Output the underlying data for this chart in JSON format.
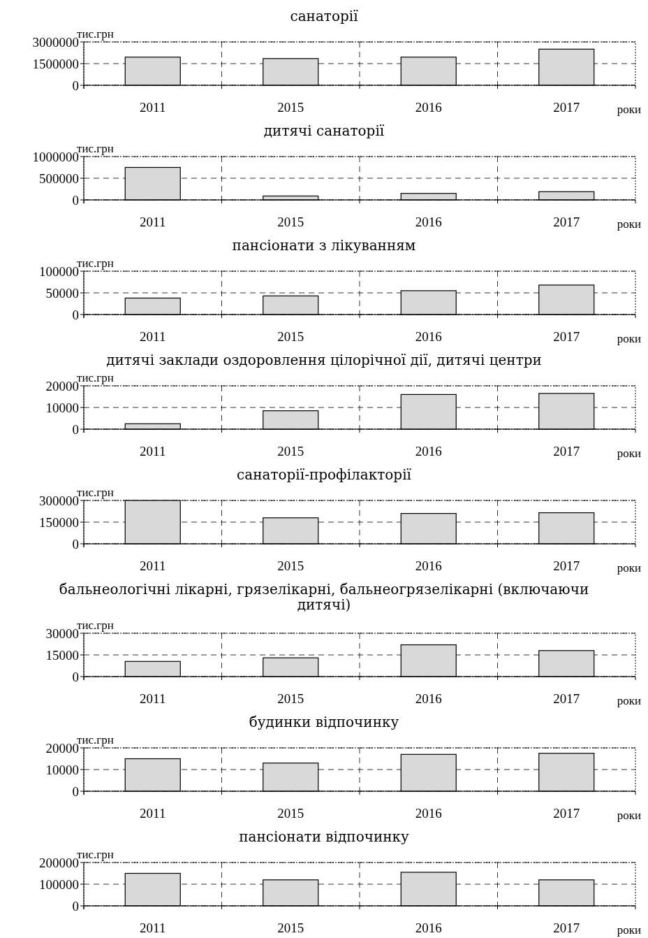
{
  "chart_data": [
    {
      "type": "bar",
      "title": "санаторії",
      "xlabel": "роки",
      "ylabel": "тис.грн",
      "categories": [
        "2011",
        "2015",
        "2016",
        "2017"
      ],
      "values": [
        1950000,
        1850000,
        1950000,
        2500000
      ],
      "color": "#d9d9d9",
      "ylim": [
        0,
        3000000
      ],
      "yticks": [
        0,
        1500000,
        3000000
      ],
      "grid": true
    },
    {
      "type": "bar",
      "title": "дитячі санаторії",
      "xlabel": "роки",
      "ylabel": "тис.грн",
      "categories": [
        "2011",
        "2015",
        "2016",
        "2017"
      ],
      "values": [
        750000,
        90000,
        150000,
        190000
      ],
      "color": "#d9d9d9",
      "ylim": [
        0,
        1000000
      ],
      "yticks": [
        0,
        500000,
        1000000
      ],
      "grid": true
    },
    {
      "type": "bar",
      "title": "пансіонати з лікуванням",
      "xlabel": "роки",
      "ylabel": "тис.грн",
      "categories": [
        "2011",
        "2015",
        "2016",
        "2017"
      ],
      "values": [
        38000,
        43000,
        55000,
        68000
      ],
      "color": "#d9d9d9",
      "ylim": [
        0,
        100000
      ],
      "yticks": [
        0,
        50000,
        100000
      ],
      "grid": true
    },
    {
      "type": "bar",
      "title": "дитячі заклади оздоровлення цілорічної дії, дитячі центри",
      "xlabel": "роки",
      "ylabel": "тис.грн",
      "categories": [
        "2011",
        "2015",
        "2016",
        "2017"
      ],
      "values": [
        2500,
        8500,
        16000,
        16500
      ],
      "color": "#d9d9d9",
      "ylim": [
        0,
        20000
      ],
      "yticks": [
        0,
        10000,
        20000
      ],
      "grid": true
    },
    {
      "type": "bar",
      "title": "санаторії-профілакторії",
      "xlabel": "роки",
      "ylabel": "тис.грн",
      "categories": [
        "2011",
        "2015",
        "2016",
        "2017"
      ],
      "values": [
        300000,
        180000,
        210000,
        215000
      ],
      "color": "#d9d9d9",
      "ylim": [
        0,
        300000
      ],
      "yticks": [
        0,
        150000,
        300000
      ],
      "grid": true
    },
    {
      "type": "bar",
      "title": "бальнеологічні лікарні, грязелікарні, бальнеогрязелікарні (включаючи\nдитячі)",
      "xlabel": "роки",
      "ylabel": "тис.грн",
      "categories": [
        "2011",
        "2015",
        "2016",
        "2017"
      ],
      "values": [
        10500,
        13000,
        22000,
        18000
      ],
      "color": "#d9d9d9",
      "ylim": [
        0,
        30000
      ],
      "yticks": [
        0,
        15000,
        30000
      ],
      "grid": true
    },
    {
      "type": "bar",
      "title": "будинки відпочинку",
      "xlabel": "роки",
      "ylabel": "тис.грн",
      "categories": [
        "2011",
        "2015",
        "2016",
        "2017"
      ],
      "values": [
        15000,
        13000,
        17000,
        17500
      ],
      "color": "#d9d9d9",
      "ylim": [
        0,
        20000
      ],
      "yticks": [
        0,
        10000,
        20000
      ],
      "grid": true
    },
    {
      "type": "bar",
      "title": "пансіонати відпочинку",
      "xlabel": "роки",
      "ylabel": "тис.грн",
      "categories": [
        "2011",
        "2015",
        "2016",
        "2017"
      ],
      "values": [
        150000,
        120000,
        155000,
        120000
      ],
      "color": "#d9d9d9",
      "ylim": [
        0,
        200000
      ],
      "yticks": [
        0,
        100000,
        200000
      ],
      "grid": true
    }
  ]
}
